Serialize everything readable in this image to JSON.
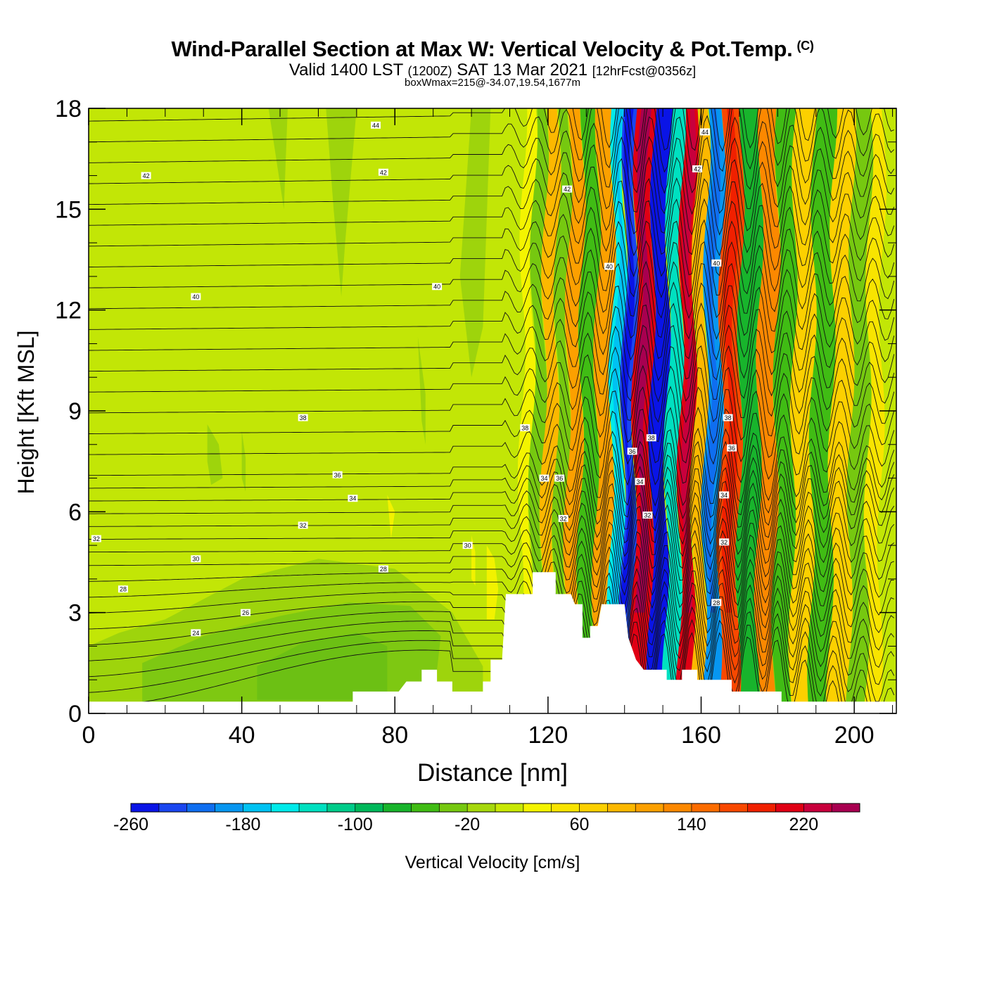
{
  "title": {
    "main": "Wind-Parallel Section at Max W: Vertical Velocity & Pot.Temp.",
    "copyright": "(C)",
    "valid_prefix": "Valid 1400 LST",
    "valid_utc": "(1200Z)",
    "valid_date": "SAT 13 Mar 2021",
    "forecast": "[12hrFcst@0356z]",
    "box": "boxWmax=215@-34.07,19.54,1677m"
  },
  "chart_data": {
    "type": "contourf",
    "xlabel": "Distance [nm]",
    "ylabel": "Height [Kft MSL]",
    "xlim": [
      0,
      211
    ],
    "ylim": [
      0,
      18
    ],
    "xticks": [
      "0",
      "40",
      "80",
      "120",
      "160",
      "200"
    ],
    "yticks": [
      "0",
      "3",
      "6",
      "9",
      "12",
      "15",
      "18"
    ],
    "colorbar": {
      "label": "Vertical Velocity [cm/s]",
      "min": -260,
      "step": 20,
      "tick_labels": [
        "-260",
        "-180",
        "-100",
        "-20",
        "60",
        "140",
        "220"
      ],
      "colors": [
        "#0a14e6",
        "#1a46f0",
        "#0f6ef0",
        "#0796f0",
        "#00c2f2",
        "#00eaea",
        "#00e0c0",
        "#00cc8a",
        "#00b85a",
        "#18b42c",
        "#40bc14",
        "#76c810",
        "#a6d80c",
        "#c8e804",
        "#f4f400",
        "#f8e400",
        "#fcd000",
        "#fcb800",
        "#fca000",
        "#fc8800",
        "#fc6c00",
        "#f84800",
        "#f02000",
        "#e00014",
        "#c8003c",
        "#a80050"
      ]
    },
    "wave_bands_w_cm_s": [
      {
        "x": 114,
        "w": 30
      },
      {
        "x": 116.5,
        "w": -30
      },
      {
        "x": 120,
        "w": 90
      },
      {
        "x": 123,
        "w": -40
      },
      {
        "x": 126,
        "w": 110
      },
      {
        "x": 130,
        "w": -60
      },
      {
        "x": 134,
        "w": 110
      },
      {
        "x": 138,
        "w": -150
      },
      {
        "x": 140,
        "w": -240
      },
      {
        "x": 144,
        "w": 215
      },
      {
        "x": 149,
        "w": -250
      },
      {
        "x": 152,
        "w": -140
      },
      {
        "x": 156,
        "w": 200
      },
      {
        "x": 159,
        "w": 80
      },
      {
        "x": 162,
        "w": -190
      },
      {
        "x": 167,
        "w": 160
      },
      {
        "x": 172,
        "w": -70
      },
      {
        "x": 177,
        "w": 120
      },
      {
        "x": 181,
        "w": -50
      },
      {
        "x": 186,
        "w": 70
      },
      {
        "x": 191,
        "w": -50
      },
      {
        "x": 196,
        "w": 60
      },
      {
        "x": 201,
        "w": -40
      },
      {
        "x": 205,
        "w": 50
      }
    ],
    "terrain_profile_kft": [
      [
        0,
        0.35
      ],
      [
        69,
        0.35
      ],
      [
        69,
        0.65
      ],
      [
        81,
        0.65
      ],
      [
        83,
        0.95
      ],
      [
        87,
        0.95
      ],
      [
        87,
        1.3
      ],
      [
        91,
        1.3
      ],
      [
        91,
        0.95
      ],
      [
        95,
        0.95
      ],
      [
        95,
        0.65
      ],
      [
        103,
        0.65
      ],
      [
        103,
        0.95
      ],
      [
        105,
        0.95
      ],
      [
        105,
        1.6
      ],
      [
        108,
        1.6
      ],
      [
        109,
        3.55
      ],
      [
        116,
        3.55
      ],
      [
        116,
        4.2
      ],
      [
        122,
        4.2
      ],
      [
        122,
        3.55
      ],
      [
        126,
        3.55
      ],
      [
        127,
        3.25
      ],
      [
        129,
        3.25
      ],
      [
        129,
        2.25
      ],
      [
        131,
        2.25
      ],
      [
        131,
        2.6
      ],
      [
        133,
        2.6
      ],
      [
        134,
        3.25
      ],
      [
        140,
        3.25
      ],
      [
        141,
        2.25
      ],
      [
        143,
        1.6
      ],
      [
        145,
        1.3
      ],
      [
        151,
        1.3
      ],
      [
        151,
        1.0
      ],
      [
        155,
        1.0
      ],
      [
        155,
        1.3
      ],
      [
        159,
        1.3
      ],
      [
        159,
        1.0
      ],
      [
        168,
        1.0
      ],
      [
        168,
        0.65
      ],
      [
        181,
        0.65
      ],
      [
        181,
        0.35
      ],
      [
        211,
        0.35
      ]
    ],
    "isentropes_K": [
      {
        "theta": 24,
        "base_kft": 2.4,
        "labels": [
          [
            28,
            2.4
          ]
        ]
      },
      {
        "theta": 26,
        "base_kft": 3.0,
        "labels": [
          [
            41,
            3.0
          ]
        ]
      },
      {
        "theta": 28,
        "base_kft": 3.7,
        "labels": [
          [
            9,
            3.7
          ],
          [
            77,
            4.3
          ],
          [
            164,
            3.3
          ]
        ]
      },
      {
        "theta": 30,
        "base_kft": 4.6,
        "labels": [
          [
            28,
            4.6
          ],
          [
            99,
            5.0
          ]
        ]
      },
      {
        "theta": 32,
        "base_kft": 5.2,
        "labels": [
          [
            2,
            5.2
          ],
          [
            56,
            5.6
          ],
          [
            124,
            5.8
          ],
          [
            146,
            5.9
          ],
          [
            166,
            5.1
          ]
        ]
      },
      {
        "theta": 34,
        "base_kft": 6.4,
        "labels": [
          [
            69,
            6.4
          ],
          [
            119,
            7.0
          ],
          [
            144,
            6.9
          ],
          [
            166,
            6.5
          ]
        ]
      },
      {
        "theta": 36,
        "base_kft": 7.1,
        "labels": [
          [
            65,
            7.1
          ],
          [
            123,
            7.0
          ],
          [
            142,
            7.8
          ],
          [
            168,
            7.9
          ]
        ]
      },
      {
        "theta": 38,
        "base_kft": 8.8,
        "labels": [
          [
            56,
            8.8
          ],
          [
            114,
            8.5
          ],
          [
            147,
            8.2
          ],
          [
            167,
            8.8
          ]
        ]
      },
      {
        "theta": 40,
        "base_kft": 12.4,
        "labels": [
          [
            28,
            12.4
          ],
          [
            91,
            12.7
          ],
          [
            136,
            13.3
          ],
          [
            164,
            13.4
          ]
        ]
      },
      {
        "theta": 42,
        "base_kft": 16.0,
        "labels": [
          [
            15,
            16.0
          ],
          [
            77,
            16.1
          ],
          [
            125,
            15.6
          ],
          [
            159,
            16.2
          ]
        ]
      },
      {
        "theta": 44,
        "base_kft": 17.5,
        "labels": [
          [
            75,
            17.5
          ],
          [
            161,
            17.3
          ]
        ]
      }
    ]
  }
}
